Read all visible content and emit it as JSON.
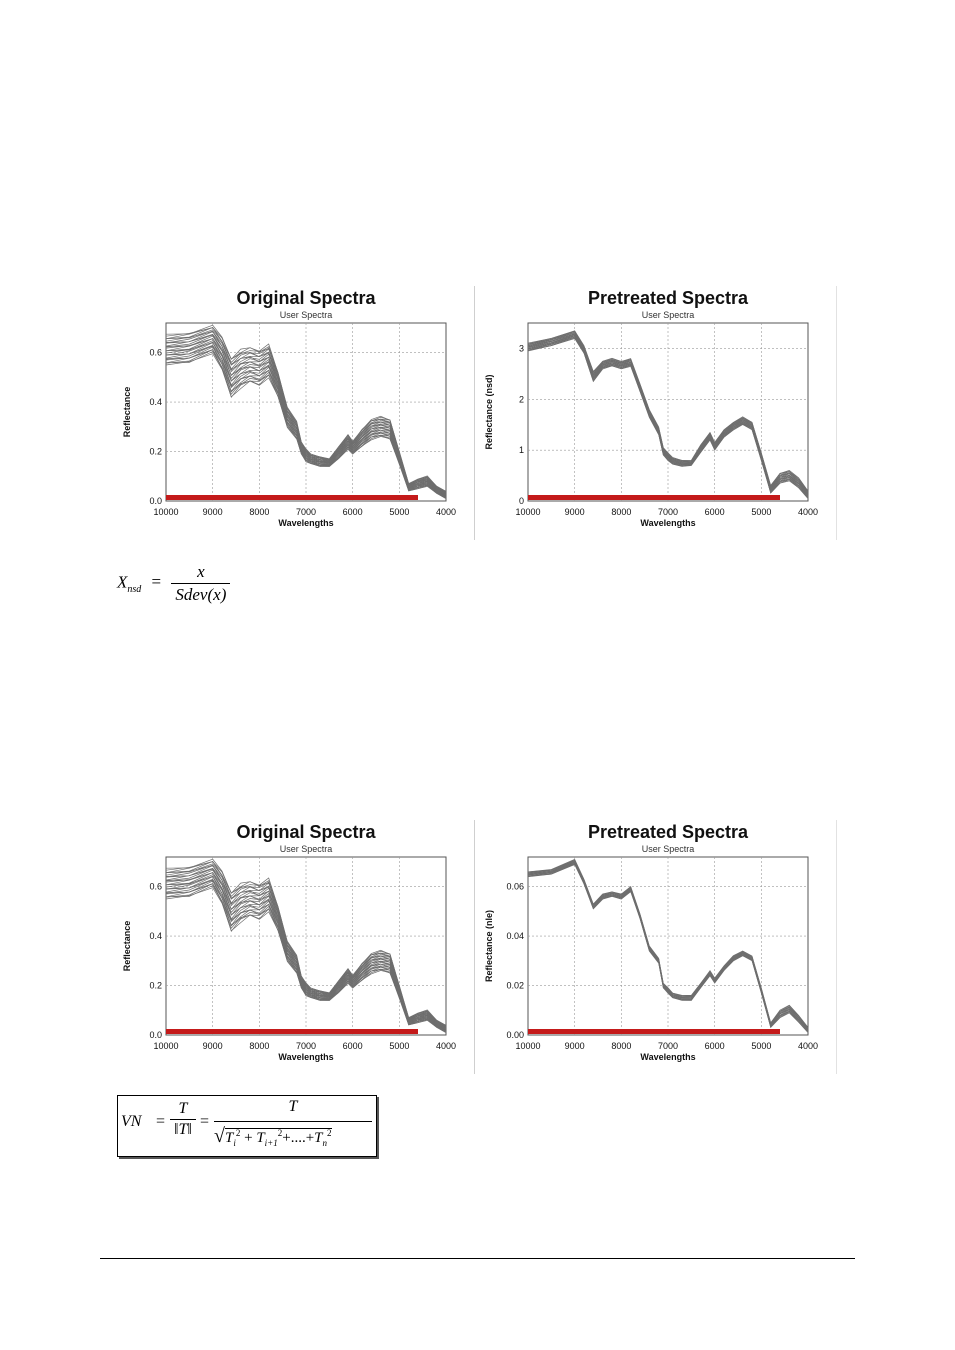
{
  "line_color": "#6e6e6e",
  "bar_color": "#c41a1a",
  "grid": true,
  "chart_data": [
    {
      "id": "c1",
      "type": "line",
      "title": "Original Spectra",
      "subtitle": "User Spectra",
      "xlabel": "Wavelengths",
      "ylabel": "Reflectance",
      "xlim": [
        10000,
        4000
      ],
      "ylim": [
        0,
        0.72
      ],
      "xticks": [
        "10000",
        "9000",
        "8000",
        "7000",
        "6000",
        "5000",
        "4000"
      ],
      "yticks": [
        "0.0",
        "0.2",
        "0.4",
        "0.6"
      ],
      "ytick_values": [
        0,
        0.2,
        0.4,
        0.6
      ],
      "series_count": 28,
      "x": [
        10000,
        9500,
        9000,
        8800,
        8600,
        8400,
        8200,
        8000,
        7800,
        7600,
        7400,
        7200,
        7100,
        7000,
        6900,
        6700,
        6500,
        6300,
        6100,
        6000,
        5800,
        5600,
        5400,
        5200,
        5000,
        4800,
        4600,
        4400,
        4200,
        4000
      ],
      "upper": [
        0.67,
        0.68,
        0.71,
        0.66,
        0.58,
        0.61,
        0.62,
        0.61,
        0.63,
        0.52,
        0.38,
        0.32,
        0.24,
        0.21,
        0.19,
        0.18,
        0.17,
        0.22,
        0.27,
        0.24,
        0.29,
        0.33,
        0.34,
        0.33,
        0.2,
        0.07,
        0.09,
        0.1,
        0.06,
        0.04
      ],
      "lower": [
        0.55,
        0.56,
        0.6,
        0.53,
        0.42,
        0.46,
        0.48,
        0.47,
        0.5,
        0.42,
        0.3,
        0.25,
        0.19,
        0.16,
        0.15,
        0.14,
        0.14,
        0.17,
        0.21,
        0.19,
        0.22,
        0.25,
        0.26,
        0.25,
        0.15,
        0.04,
        0.05,
        0.06,
        0.03,
        0.01
      ],
      "bar_range": [
        10000,
        4600
      ]
    },
    {
      "id": "c2",
      "type": "line",
      "title": "Pretreated Spectra",
      "subtitle": "User Spectra",
      "xlabel": "Wavelengths",
      "ylabel": "Reflectance (nsd)",
      "xlim": [
        10000,
        4000
      ],
      "ylim": [
        0,
        3.5
      ],
      "xticks": [
        "10000",
        "9000",
        "8000",
        "7000",
        "6000",
        "5000",
        "4000"
      ],
      "yticks": [
        "0",
        "1",
        "2",
        "3"
      ],
      "ytick_values": [
        0,
        1,
        2,
        3
      ],
      "series_count": 20,
      "x": [
        10000,
        9500,
        9000,
        8800,
        8600,
        8400,
        8200,
        8000,
        7800,
        7600,
        7400,
        7200,
        7100,
        7000,
        6900,
        6700,
        6500,
        6300,
        6100,
        6000,
        5800,
        5600,
        5400,
        5200,
        5000,
        4800,
        4600,
        4400,
        4200,
        4000
      ],
      "upper": [
        3.1,
        3.2,
        3.35,
        3.05,
        2.55,
        2.75,
        2.8,
        2.75,
        2.8,
        2.3,
        1.8,
        1.45,
        1.05,
        0.95,
        0.85,
        0.8,
        0.8,
        1.1,
        1.35,
        1.15,
        1.4,
        1.55,
        1.65,
        1.55,
        0.95,
        0.3,
        0.55,
        0.6,
        0.45,
        0.2
      ],
      "lower": [
        2.95,
        3.05,
        3.2,
        2.9,
        2.35,
        2.6,
        2.65,
        2.6,
        2.65,
        2.15,
        1.65,
        1.3,
        0.9,
        0.8,
        0.72,
        0.68,
        0.7,
        0.95,
        1.2,
        1.0,
        1.25,
        1.4,
        1.5,
        1.4,
        0.8,
        0.15,
        0.35,
        0.4,
        0.25,
        0.05
      ],
      "bar_range": [
        10000,
        4600
      ]
    },
    {
      "id": "c3",
      "type": "line",
      "title": "Original Spectra",
      "subtitle": "User Spectra",
      "xlabel": "Wavelengths",
      "ylabel": "Reflectance",
      "xlim": [
        10000,
        4000
      ],
      "ylim": [
        0,
        0.72
      ],
      "xticks": [
        "10000",
        "9000",
        "8000",
        "7000",
        "6000",
        "5000",
        "4000"
      ],
      "yticks": [
        "0.0",
        "0.2",
        "0.4",
        "0.6"
      ],
      "ytick_values": [
        0,
        0.2,
        0.4,
        0.6
      ],
      "series_count": 28,
      "x": [
        10000,
        9500,
        9000,
        8800,
        8600,
        8400,
        8200,
        8000,
        7800,
        7600,
        7400,
        7200,
        7100,
        7000,
        6900,
        6700,
        6500,
        6300,
        6100,
        6000,
        5800,
        5600,
        5400,
        5200,
        5000,
        4800,
        4600,
        4400,
        4200,
        4000
      ],
      "upper": [
        0.67,
        0.68,
        0.71,
        0.66,
        0.58,
        0.61,
        0.62,
        0.61,
        0.63,
        0.52,
        0.38,
        0.32,
        0.24,
        0.21,
        0.19,
        0.18,
        0.17,
        0.22,
        0.27,
        0.24,
        0.29,
        0.33,
        0.34,
        0.33,
        0.2,
        0.07,
        0.09,
        0.1,
        0.06,
        0.04
      ],
      "lower": [
        0.55,
        0.56,
        0.6,
        0.53,
        0.42,
        0.46,
        0.48,
        0.47,
        0.5,
        0.42,
        0.3,
        0.25,
        0.19,
        0.16,
        0.15,
        0.14,
        0.14,
        0.17,
        0.21,
        0.19,
        0.22,
        0.25,
        0.26,
        0.25,
        0.15,
        0.04,
        0.05,
        0.06,
        0.03,
        0.01
      ],
      "bar_range": [
        10000,
        4600
      ]
    },
    {
      "id": "c4",
      "type": "line",
      "title": "Pretreated Spectra",
      "subtitle": "User Spectra",
      "xlabel": "Wavelengths",
      "ylabel": "Reflectance (nle)",
      "xlim": [
        10000,
        4000
      ],
      "ylim": [
        0,
        0.072
      ],
      "xticks": [
        "10000",
        "9000",
        "8000",
        "7000",
        "6000",
        "5000",
        "4000"
      ],
      "yticks": [
        "0.00",
        "0.02",
        "0.04",
        "0.06"
      ],
      "ytick_values": [
        0,
        0.02,
        0.04,
        0.06
      ],
      "series_count": 14,
      "x": [
        10000,
        9500,
        9000,
        8800,
        8600,
        8400,
        8200,
        8000,
        7800,
        7600,
        7400,
        7200,
        7100,
        7000,
        6900,
        6700,
        6500,
        6300,
        6100,
        6000,
        5800,
        5600,
        5400,
        5200,
        5000,
        4800,
        4600,
        4400,
        4200,
        4000
      ],
      "upper": [
        0.066,
        0.067,
        0.071,
        0.063,
        0.053,
        0.057,
        0.058,
        0.057,
        0.06,
        0.049,
        0.036,
        0.031,
        0.021,
        0.019,
        0.017,
        0.016,
        0.016,
        0.021,
        0.026,
        0.023,
        0.028,
        0.032,
        0.034,
        0.032,
        0.019,
        0.005,
        0.01,
        0.012,
        0.008,
        0.003
      ],
      "lower": [
        0.064,
        0.065,
        0.069,
        0.061,
        0.051,
        0.055,
        0.056,
        0.055,
        0.058,
        0.047,
        0.034,
        0.029,
        0.019,
        0.017,
        0.015,
        0.014,
        0.014,
        0.019,
        0.024,
        0.021,
        0.026,
        0.03,
        0.032,
        0.03,
        0.017,
        0.003,
        0.007,
        0.009,
        0.005,
        0.001
      ],
      "bar_range": [
        10000,
        4600
      ]
    }
  ],
  "formulas": {
    "snv": {
      "lhs": "X",
      "lhs_sub": "nsd",
      "eq": "=",
      "numerator": "x",
      "denominator": "Sdev(x)"
    },
    "vn": {
      "lhs": "VN",
      "eq1": "=",
      "eq2": "=",
      "num1": "T",
      "den1": "‖T‖",
      "num2": "T",
      "radical": "√",
      "t1": "T",
      "t1_sub": "i",
      "t1_sup": "2",
      "plus1": "+",
      "t2": "T",
      "t2_sub": "i+1",
      "t2_sup": "2",
      "plus2": "+....+",
      "t3": "T",
      "t3_sub": "n",
      "t3_sup": "2"
    }
  }
}
